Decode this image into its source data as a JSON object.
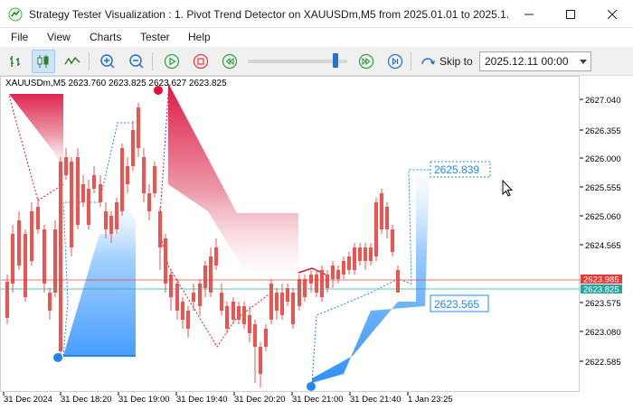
{
  "window": {
    "title": "Strategy Tester Visualization : 1. Pivot Trend Detector on XAUUSDm,M5 from 2025.01.01 to 2025.1..."
  },
  "menu": [
    "File",
    "View",
    "Charts",
    "Tester",
    "Help"
  ],
  "toolbar": {
    "skip_label": "Skip to",
    "skip_date": "2025.12.11 00:00"
  },
  "chart": {
    "symbol_info": "XAUUSDm,M5  2623.760  2623.825  2623.627  2623.825",
    "price_labels": [
      "2627.040",
      "2626.355",
      "2626.000",
      "2625.555",
      "2625.060",
      "2624.565",
      "2624.070",
      "2623.575",
      "2623.080",
      "2622.585"
    ],
    "current_price_labels": [
      "2623.985",
      "2623.825"
    ],
    "time_labels": [
      "31 Dec 2024",
      "31 Dec 18:20",
      "31 Dec 19:00",
      "31 Dec 19:40",
      "31 Dec 20:20",
      "31 Dec 21:00",
      "31 Dec 21:40",
      "1 Jan 23:25"
    ],
    "upper_value_label": "2625.839",
    "lower_value_label": "2623.565",
    "colors": {
      "bull_candle": "#26a69a",
      "bear_candle": "#ef5350",
      "upper_band": "#e0103a",
      "lower_band": "#1e88f0",
      "bid_line": "#e53935",
      "ask_line": "#26a69a"
    }
  }
}
